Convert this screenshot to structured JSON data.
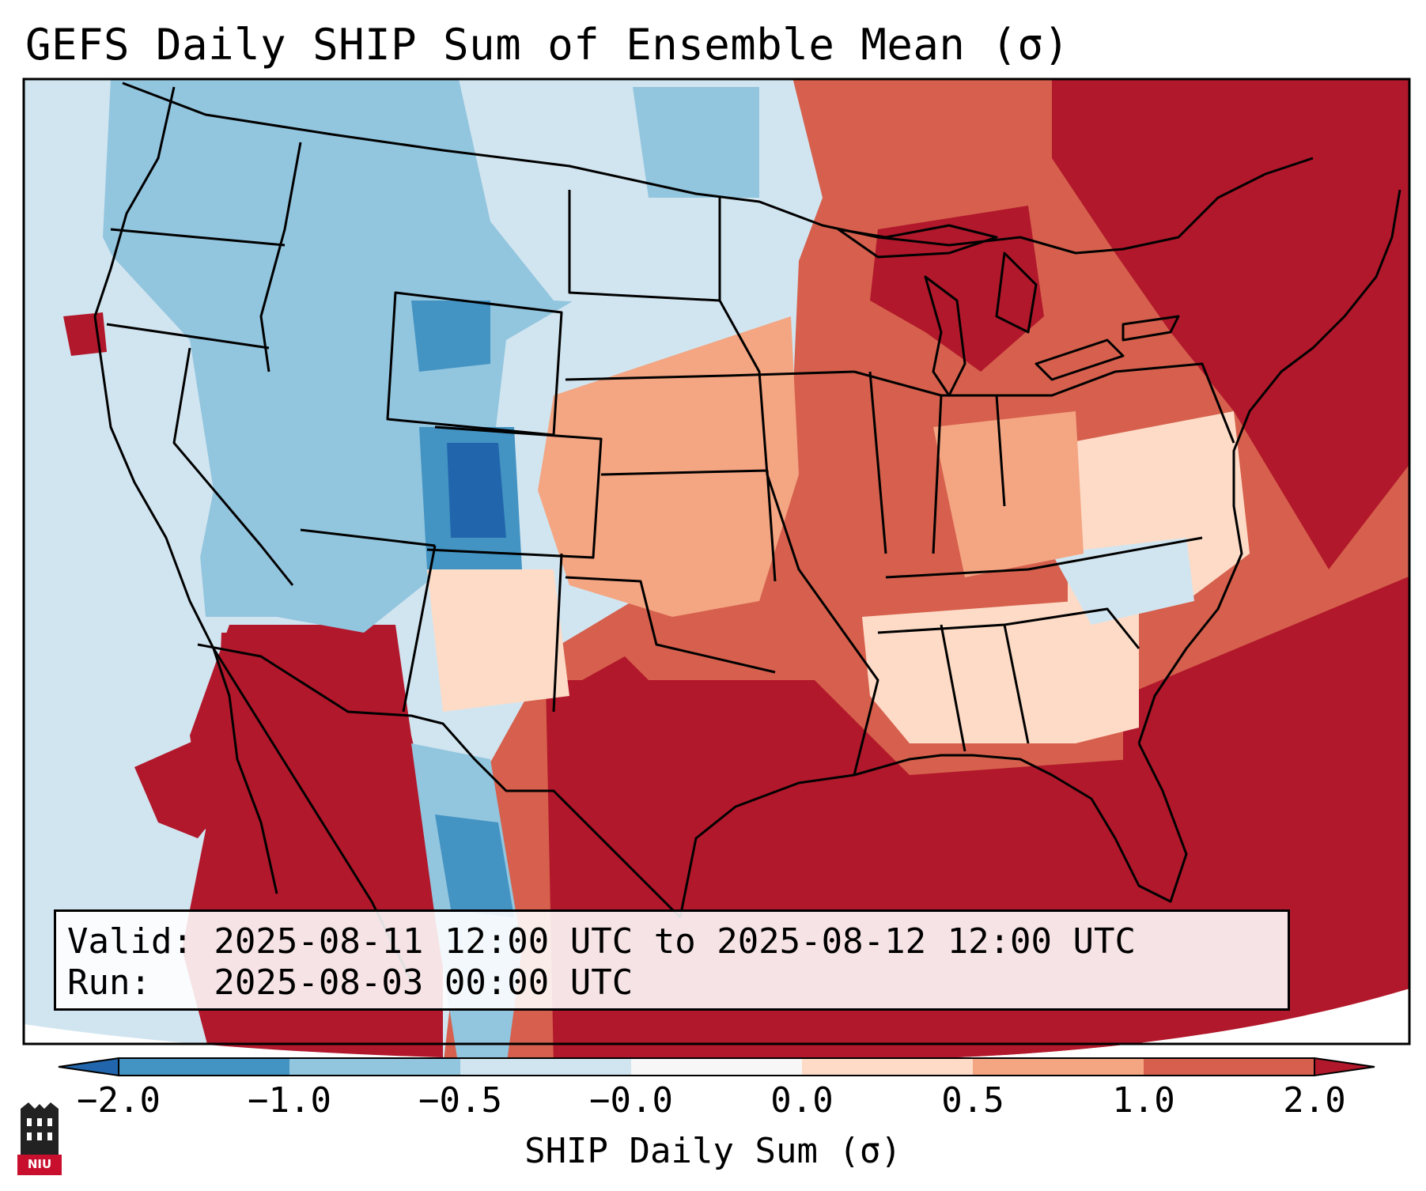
{
  "title": "GEFS Daily SHIP Sum of Ensemble Mean (σ)",
  "info": {
    "valid_line": "Valid: 2025-08-11 12:00 UTC to 2025-08-12 12:00 UTC",
    "run_line": "Run:   2025-08-03 00:00 UTC"
  },
  "colorbar": {
    "label": "SHIP Daily Sum (σ)",
    "tick_labels": [
      "−2.0",
      "−1.0",
      "−0.5",
      "−0.0",
      "0.0",
      "0.5",
      "1.0",
      "2.0"
    ],
    "bin_colors": [
      "#2166ac",
      "#4393c3",
      "#92c5de",
      "#d1e5f0",
      "#f7f7f7",
      "#fddbc7",
      "#f4a582",
      "#d6604d",
      "#b2182b"
    ],
    "extend": "both"
  },
  "palette": {
    "strong_positive": "#b2182b",
    "positive": "#d6604d",
    "mild_positive": "#f4a582",
    "weak_positive": "#fddbc7",
    "weak_negative": "#d1e5f0",
    "mild_negative": "#92c5de",
    "negative": "#4393c3",
    "strong_negative": "#2166ac",
    "neutral": "#f7f7f7",
    "background": "#ffffff",
    "border": "#000000"
  },
  "logo": {
    "text": "NIU",
    "color": "#c8102e"
  }
}
